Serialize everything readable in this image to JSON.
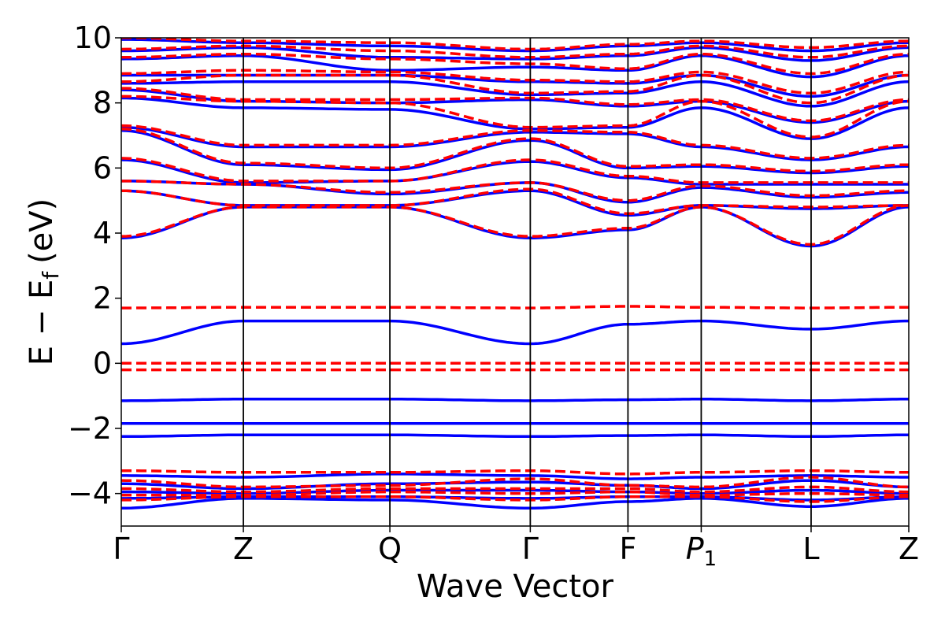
{
  "chart_data": {
    "type": "line",
    "xlabel": "Wave Vector",
    "ylabel_parts": {
      "main": "E − E",
      "subscript": "f",
      "unit": "(eV)"
    },
    "ylim": [
      -5,
      10
    ],
    "yticks": [
      10,
      8,
      6,
      4,
      2,
      0,
      -2,
      -4
    ],
    "ytick_labels": [
      "10",
      "8",
      "6",
      "4",
      "2",
      "0",
      "−2",
      "−4"
    ],
    "kpoints": [
      {
        "label": "Γ",
        "sub": "",
        "x": 0.0
      },
      {
        "label": "Z",
        "sub": "",
        "x": 1.0
      },
      {
        "label": "Q",
        "sub": "",
        "x": 2.2
      },
      {
        "label": "Γ",
        "sub": "",
        "x": 3.35
      },
      {
        "label": "F",
        "sub": "",
        "x": 4.15
      },
      {
        "label": "P",
        "sub": "1",
        "x": 4.75
      },
      {
        "label": "L",
        "sub": "",
        "x": 5.65
      },
      {
        "label": "Z",
        "sub": "",
        "x": 6.45
      }
    ],
    "grid": false,
    "colors": {
      "solid": "#0000ff",
      "dashed": "#ff0000",
      "vline": "#000000"
    },
    "series": [
      {
        "style": "solid",
        "bands": [
          [
            0.6,
            1.3,
            1.3,
            0.6,
            1.2,
            1.3,
            1.05,
            1.3
          ],
          [
            -1.15,
            -1.1,
            -1.1,
            -1.15,
            -1.12,
            -1.1,
            -1.15,
            -1.1
          ],
          [
            -1.85,
            -1.85,
            -1.85,
            -1.85,
            -1.85,
            -1.85,
            -1.85,
            -1.85
          ],
          [
            -2.25,
            -2.2,
            -2.2,
            -2.25,
            -2.22,
            -2.2,
            -2.25,
            -2.2
          ],
          [
            -3.45,
            -3.5,
            -3.4,
            -3.45,
            -3.55,
            -3.5,
            -3.45,
            -3.5
          ],
          [
            -3.7,
            -3.85,
            -3.7,
            -3.65,
            -3.75,
            -3.85,
            -3.6,
            -3.8
          ],
          [
            -3.95,
            -4.0,
            -3.9,
            -3.9,
            -3.95,
            -4.0,
            -3.9,
            -4.0
          ],
          [
            -4.15,
            -4.1,
            -4.1,
            -4.15,
            -4.1,
            -4.1,
            -4.2,
            -4.1
          ],
          [
            -4.45,
            -4.15,
            -4.2,
            -4.45,
            -4.25,
            -4.15,
            -4.4,
            -4.15
          ],
          [
            3.85,
            4.8,
            4.8,
            3.85,
            4.1,
            4.8,
            3.6,
            4.8
          ],
          [
            5.3,
            4.85,
            4.85,
            5.3,
            4.55,
            4.85,
            4.75,
            4.85
          ],
          [
            5.6,
            5.5,
            5.2,
            5.55,
            4.95,
            5.4,
            5.1,
            5.25
          ],
          [
            6.25,
            5.55,
            5.6,
            6.2,
            5.7,
            5.5,
            5.5,
            5.5
          ],
          [
            7.15,
            6.1,
            5.95,
            6.85,
            6.0,
            6.05,
            5.85,
            6.05
          ],
          [
            7.25,
            6.65,
            6.65,
            7.1,
            7.05,
            6.65,
            6.25,
            6.65
          ],
          [
            8.15,
            7.85,
            7.8,
            7.2,
            7.25,
            7.85,
            6.9,
            7.85
          ],
          [
            8.4,
            8.05,
            8.0,
            8.1,
            7.9,
            8.05,
            7.4,
            8.05
          ],
          [
            8.6,
            8.65,
            8.65,
            8.25,
            8.3,
            8.65,
            7.9,
            8.65
          ],
          [
            8.85,
            8.85,
            8.85,
            8.65,
            8.6,
            8.85,
            8.2,
            8.85
          ],
          [
            9.35,
            9.45,
            9.0,
            9.1,
            9.0,
            9.45,
            8.8,
            9.45
          ],
          [
            9.6,
            9.7,
            9.4,
            9.35,
            9.45,
            9.7,
            9.3,
            9.7
          ],
          [
            9.95,
            9.85,
            9.75,
            9.6,
            9.75,
            9.85,
            9.6,
            9.85
          ]
        ]
      },
      {
        "style": "dashed",
        "bands": [
          [
            1.7,
            1.72,
            1.72,
            1.7,
            1.75,
            1.72,
            1.7,
            1.72
          ],
          [
            0.0,
            0.0,
            0.0,
            0.0,
            0.0,
            0.0,
            0.0,
            0.0
          ],
          [
            -0.2,
            -0.2,
            -0.2,
            -0.2,
            -0.2,
            -0.2,
            -0.2,
            -0.2
          ],
          [
            -3.3,
            -3.35,
            -3.35,
            -3.3,
            -3.4,
            -3.35,
            -3.3,
            -3.35
          ],
          [
            -3.6,
            -3.8,
            -3.75,
            -3.55,
            -3.75,
            -3.8,
            -3.5,
            -3.8
          ],
          [
            -3.85,
            -3.95,
            -3.85,
            -3.85,
            -3.85,
            -3.95,
            -3.8,
            -3.95
          ],
          [
            -4.05,
            -4.05,
            -3.95,
            -4.0,
            -3.95,
            -4.05,
            -4.0,
            -4.05
          ],
          [
            -4.2,
            -4.1,
            -4.1,
            -4.2,
            -4.1,
            -4.1,
            -4.25,
            -4.1
          ],
          [
            3.9,
            4.8,
            4.8,
            3.9,
            4.15,
            4.8,
            3.65,
            4.85
          ],
          [
            5.3,
            4.85,
            4.85,
            5.35,
            4.6,
            4.85,
            4.8,
            4.85
          ],
          [
            5.6,
            5.5,
            5.25,
            5.55,
            5.0,
            5.45,
            5.15,
            5.3
          ],
          [
            6.3,
            5.6,
            5.6,
            6.25,
            5.75,
            5.55,
            5.55,
            5.55
          ],
          [
            7.2,
            6.15,
            6.0,
            6.9,
            6.05,
            6.1,
            5.9,
            6.1
          ],
          [
            7.3,
            6.7,
            6.7,
            7.15,
            7.1,
            6.7,
            6.3,
            6.7
          ],
          [
            8.2,
            8.05,
            8.0,
            7.25,
            7.3,
            8.05,
            6.95,
            8.05
          ],
          [
            8.45,
            8.1,
            8.1,
            8.15,
            7.95,
            8.1,
            7.45,
            8.1
          ],
          [
            8.65,
            8.85,
            8.85,
            8.3,
            8.35,
            8.85,
            8.0,
            8.85
          ],
          [
            8.9,
            9.0,
            8.95,
            8.7,
            8.65,
            8.95,
            8.3,
            8.95
          ],
          [
            9.4,
            9.5,
            9.35,
            9.2,
            9.05,
            9.5,
            8.9,
            9.5
          ],
          [
            9.65,
            9.75,
            9.6,
            9.4,
            9.5,
            9.75,
            9.4,
            9.75
          ],
          [
            10.0,
            9.9,
            9.85,
            9.65,
            9.8,
            9.9,
            9.7,
            9.9
          ]
        ]
      }
    ]
  }
}
